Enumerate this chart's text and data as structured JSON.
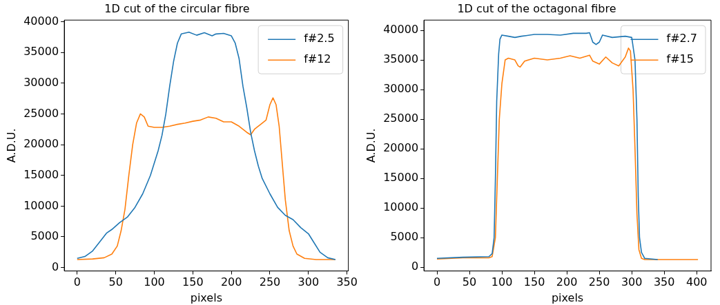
{
  "chart_data": [
    {
      "type": "line",
      "title": "1D cut of the circular fibre",
      "xlabel": "pixels",
      "ylabel": "A.D.U.",
      "xlim": [
        -16.75,
        351.75
      ],
      "ylim": [
        -555,
        40255
      ],
      "xticks": [
        0,
        50,
        100,
        150,
        200,
        250,
        300,
        350
      ],
      "yticks": [
        0,
        5000,
        10000,
        15000,
        20000,
        25000,
        30000,
        35000,
        40000
      ],
      "legend": "top right",
      "grid": false,
      "series": [
        {
          "name": "f#2.5",
          "color": "#1f77b4",
          "x": [
            0,
            10,
            20,
            30,
            38,
            45,
            55,
            65,
            75,
            85,
            95,
            105,
            110,
            115,
            120,
            125,
            130,
            135,
            145,
            155,
            165,
            175,
            180,
            190,
            200,
            205,
            210,
            215,
            220,
            225,
            230,
            235,
            240,
            250,
            260,
            270,
            280,
            290,
            300,
            305,
            315,
            325,
            335
          ],
          "values": [
            1500,
            1800,
            2700,
            4300,
            5600,
            6200,
            7300,
            8200,
            9800,
            12000,
            15000,
            19000,
            21500,
            25000,
            29500,
            33500,
            36500,
            38000,
            38300,
            37800,
            38200,
            37700,
            38000,
            38100,
            37700,
            36500,
            34000,
            29500,
            26000,
            22000,
            19000,
            16500,
            14500,
            12000,
            9800,
            8500,
            7800,
            6500,
            5500,
            4500,
            2500,
            1600,
            1300
          ]
        },
        {
          "name": "f#12",
          "color": "#ff7f0e",
          "x": [
            0,
            20,
            35,
            45,
            52,
            57,
            62,
            67,
            72,
            77,
            82,
            87,
            92,
            100,
            110,
            120,
            130,
            140,
            150,
            160,
            170,
            180,
            190,
            200,
            210,
            220,
            225,
            230,
            240,
            245,
            250,
            254,
            258,
            262,
            266,
            270,
            275,
            280,
            285,
            295,
            310,
            335
          ],
          "values": [
            1300,
            1400,
            1600,
            2200,
            3500,
            6000,
            9500,
            15000,
            20000,
            23500,
            25000,
            24500,
            23000,
            22800,
            22800,
            23000,
            23300,
            23500,
            23800,
            24000,
            24500,
            24300,
            23700,
            23700,
            23000,
            22000,
            21600,
            22500,
            23500,
            24000,
            26500,
            27600,
            26500,
            23000,
            17000,
            11000,
            6000,
            3500,
            2200,
            1500,
            1300,
            1300
          ]
        }
      ]
    },
    {
      "type": "line",
      "title": "1D cut of the octagonal fibre",
      "xlabel": "pixels",
      "ylabel": "A.D.U.",
      "xlim": [
        -20.1,
        422.1
      ],
      "ylim": [
        -625,
        41725
      ],
      "xticks": [
        0,
        50,
        100,
        150,
        200,
        250,
        300,
        350,
        400
      ],
      "yticks": [
        0,
        5000,
        10000,
        15000,
        20000,
        25000,
        30000,
        35000,
        40000
      ],
      "legend": "top right",
      "grid": false,
      "series": [
        {
          "name": "f#2.7",
          "color": "#1f77b4",
          "x": [
            0,
            40,
            80,
            85,
            88,
            90,
            92,
            95,
            97,
            100,
            110,
            120,
            130,
            150,
            170,
            190,
            210,
            230,
            235,
            240,
            245,
            250,
            255,
            270,
            290,
            300,
            305,
            308,
            310,
            312,
            315,
            320,
            340
          ],
          "values": [
            1500,
            1700,
            1800,
            2300,
            5000,
            15000,
            28000,
            36000,
            38500,
            39200,
            39000,
            38800,
            39000,
            39300,
            39300,
            39200,
            39500,
            39500,
            39600,
            38000,
            37600,
            38000,
            39200,
            38800,
            39000,
            38800,
            35000,
            25000,
            12000,
            5000,
            2500,
            1500,
            1300
          ]
        },
        {
          "name": "f#15",
          "color": "#ff7f0e",
          "x": [
            0,
            40,
            80,
            85,
            90,
            93,
            96,
            100,
            105,
            110,
            120,
            125,
            128,
            135,
            150,
            170,
            190,
            205,
            220,
            235,
            240,
            250,
            260,
            270,
            280,
            290,
            295,
            298,
            302,
            305,
            308,
            311,
            315,
            320,
            402
          ],
          "values": [
            1400,
            1600,
            1600,
            1800,
            5000,
            15000,
            25000,
            31000,
            35000,
            35300,
            35000,
            34000,
            33800,
            34800,
            35300,
            35000,
            35300,
            35700,
            35300,
            35800,
            34800,
            34300,
            35500,
            34500,
            34000,
            35500,
            37000,
            36500,
            30000,
            20000,
            9000,
            3000,
            1500,
            1300,
            1300
          ]
        }
      ]
    }
  ]
}
